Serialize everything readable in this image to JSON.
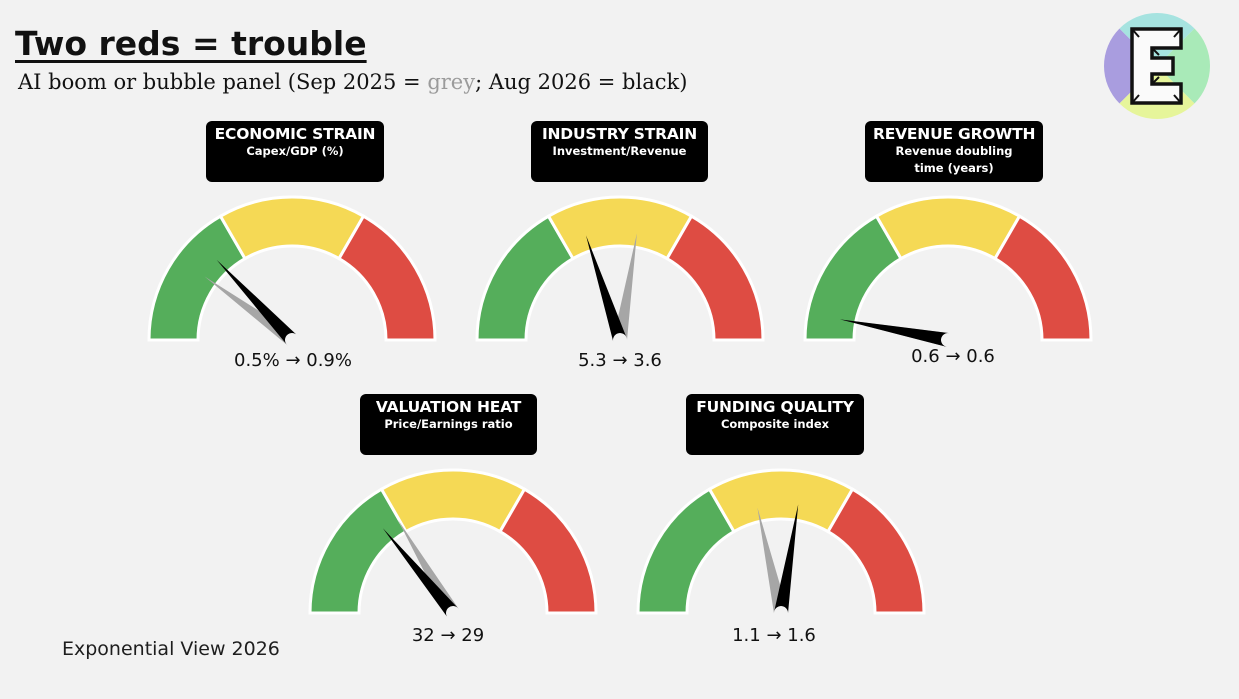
{
  "header": {
    "title": "Two reds = trouble",
    "subtitle_before": "AI boom or bubble panel (Sep 2025 = ",
    "subtitle_grey": "grey",
    "subtitle_after": "; Aug 2026 = black)"
  },
  "footer": {
    "text": "Exponential View 2026"
  },
  "logo": {
    "letter": "E"
  },
  "colors": {
    "background": "#f2f2f2",
    "green": "#55ae5b",
    "yellow": "#f5d955",
    "red": "#de4c43",
    "needle_sep_2025": "#a6a6a6",
    "needle_aug_2026": "#000000",
    "label_bg": "#000000",
    "logo_purple": "#a99ddf",
    "logo_teal": "#a6e3e0",
    "logo_mint": "#a9eab8",
    "logo_lime": "#e6f59a"
  },
  "chart_data": {
    "type": "gauge",
    "zones": [
      "green",
      "yellow",
      "red"
    ],
    "gauges": [
      {
        "title": "ECONOMIC STRAIN",
        "subtitle": "Capex/GDP (%)",
        "value_text": "0.5% → 0.9%",
        "sep_2025": 0.5,
        "aug_2026": 0.9,
        "needle_sep_2025_pct": 0.2,
        "needle_aug_2026_pct": 0.26
      },
      {
        "title": "INDUSTRY STRAIN",
        "subtitle": "Investment/Revenue",
        "value_text": "5.3 → 3.6",
        "sep_2025": 5.3,
        "aug_2026": 3.6,
        "needle_sep_2025_pct": 0.55,
        "needle_aug_2026_pct": 0.4
      },
      {
        "title": "REVENUE GROWTH",
        "subtitle": "Revenue doubling time (years)",
        "value_text": "0.6 → 0.6",
        "sep_2025": 0.6,
        "aug_2026": 0.6,
        "needle_sep_2025_pct": 0.06,
        "needle_aug_2026_pct": 0.06
      },
      {
        "title": "VALUATION HEAT",
        "subtitle": "Price/Earnings ratio",
        "value_text": "32 → 29",
        "sep_2025": 32,
        "aug_2026": 29,
        "needle_sep_2025_pct": 0.33,
        "needle_aug_2026_pct": 0.28
      },
      {
        "title": "FUNDING QUALITY",
        "subtitle": "Composite index",
        "value_text": "1.1 → 1.6",
        "sep_2025": 1.1,
        "aug_2026": 1.6,
        "needle_sep_2025_pct": 0.43,
        "needle_aug_2026_pct": 0.55
      }
    ]
  }
}
